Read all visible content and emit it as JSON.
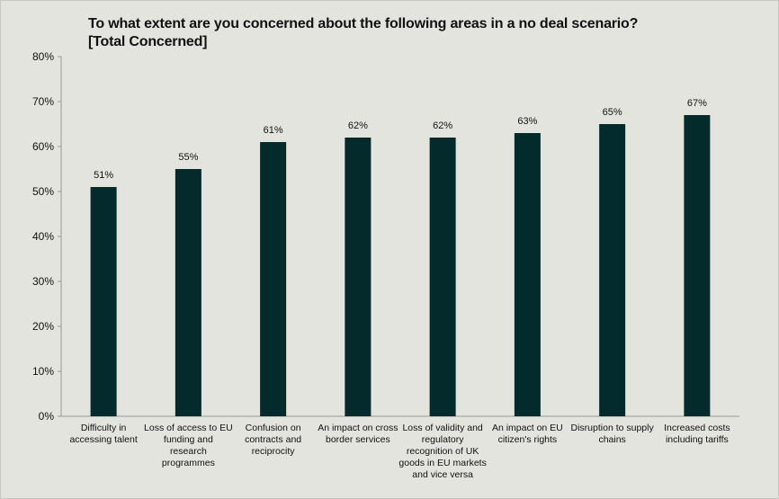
{
  "chart_data": {
    "type": "bar",
    "title": "To what extent are you concerned about the following areas in a no deal scenario?",
    "subtitle": "[Total Concerned]",
    "categories": [
      [
        "Difficulty in",
        "accessing talent"
      ],
      [
        "Loss of access to EU",
        "funding and",
        "research",
        "programmes"
      ],
      [
        "Confusion on",
        "contracts and",
        "reciprocity"
      ],
      [
        "An impact on cross",
        "border services"
      ],
      [
        "Loss of validity and",
        "regulatory",
        "recognition of UK",
        "goods in EU markets",
        "and vice versa"
      ],
      [
        "An impact on EU",
        "citizen's rights"
      ],
      [
        "Disruption to supply",
        "chains"
      ],
      [
        "Increased costs",
        "including tariffs"
      ]
    ],
    "values": [
      51,
      55,
      61,
      62,
      62,
      63,
      65,
      67
    ],
    "data_labels": [
      "51%",
      "55%",
      "61%",
      "62%",
      "62%",
      "63%",
      "65%",
      "67%"
    ],
    "ylim": [
      0,
      80
    ],
    "yticks": [
      "0%",
      "10%",
      "20%",
      "30%",
      "40%",
      "50%",
      "60%",
      "70%",
      "80%"
    ],
    "grid": false,
    "bar_color": "#032b2b",
    "background_color": "#e4e4de"
  }
}
